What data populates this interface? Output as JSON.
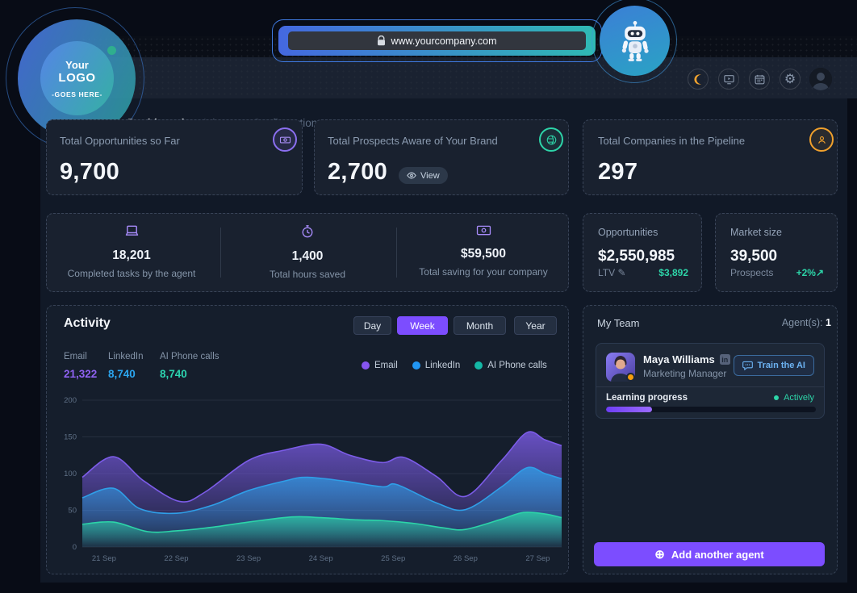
{
  "browser": {
    "url": "www.yourcompany.com"
  },
  "logo": {
    "line1": "Your",
    "line2": "LOGO",
    "line3": "-GOES HERE-"
  },
  "nav": {
    "tabs": [
      {
        "label": "Dashboard"
      },
      {
        "label": "Inbox"
      },
      {
        "label": "Configurations"
      }
    ],
    "active_tab": "Dashboard"
  },
  "header_icons": [
    "moon-icon",
    "screen-play-icon",
    "calendar-icon",
    "gear-icon"
  ],
  "kpi_cards": [
    {
      "title": "Total Opportunities so Far",
      "value": "9,700",
      "icon": "banknote-icon",
      "accent": "#8b6ff0"
    },
    {
      "title": "Total Prospects Aware of Your Brand",
      "value": "2,700",
      "action": "View",
      "icon": "globe-icon",
      "accent": "#2dd4a8"
    },
    {
      "title": "Total Companies in the Pipeline",
      "value": "297",
      "icon": "person-icon",
      "accent": "#f0a02c"
    }
  ],
  "summary_stats": [
    {
      "icon": "laptop-icon",
      "value": "18,201",
      "label": "Completed tasks by the agent"
    },
    {
      "icon": "alarm-clock-icon",
      "value": "1,400",
      "label": "Total hours saved"
    },
    {
      "icon": "money-icon",
      "value": "$59,500",
      "label": "Total saving for your company"
    }
  ],
  "side_stats": [
    {
      "title": "Opportunities",
      "value": "$2,550,985",
      "sub_label": "LTV",
      "sub_value": "$3,892"
    },
    {
      "title": "Market size",
      "value": "39,500",
      "sub_label": "Prospects",
      "sub_value": "+2%"
    }
  ],
  "activity": {
    "title": "Activity",
    "range_buttons": [
      "Day",
      "Week",
      "Month",
      "Year"
    ],
    "active_range": "Week",
    "totals": [
      {
        "label": "Email",
        "value": "21,322",
        "color": "#8f62f2"
      },
      {
        "label": "LinkedIn",
        "value": "8,740",
        "color": "#2ba6f0"
      },
      {
        "label": "AI Phone calls",
        "value": "8,740",
        "color": "#2cd4b0"
      }
    ]
  },
  "chart_data": {
    "type": "area",
    "title": "Activity (weekly)",
    "x_labels": [
      "21 Sep",
      "22 Sep",
      "23 Sep",
      "24 Sep",
      "25 Sep",
      "26 Sep",
      "27 Sep"
    ],
    "x_tick_positions": [
      0,
      1,
      2,
      3,
      4,
      5,
      6
    ],
    "x_range": [
      -0.3,
      6.33
    ],
    "ylim": [
      0,
      200
    ],
    "yticks": [
      0,
      50,
      100,
      150,
      200
    ],
    "grid": true,
    "legend_position": "top-right",
    "series": [
      {
        "name": "Email",
        "color": "#7c5ce8",
        "points": [
          [
            -0.3,
            95
          ],
          [
            0.13,
            123
          ],
          [
            0.55,
            90
          ],
          [
            1.05,
            62
          ],
          [
            1.4,
            75
          ],
          [
            2.0,
            118
          ],
          [
            2.5,
            132
          ],
          [
            3.0,
            140
          ],
          [
            3.4,
            125
          ],
          [
            3.85,
            115
          ],
          [
            4.15,
            122
          ],
          [
            4.6,
            96
          ],
          [
            5.0,
            69
          ],
          [
            5.5,
            118
          ],
          [
            5.85,
            156
          ],
          [
            6.1,
            146
          ],
          [
            6.33,
            138
          ]
        ]
      },
      {
        "name": "LinkedIn",
        "color": "#2f9fe8",
        "points": [
          [
            -0.3,
            67
          ],
          [
            0.13,
            80
          ],
          [
            0.5,
            52
          ],
          [
            1.0,
            46
          ],
          [
            1.5,
            57
          ],
          [
            2.0,
            77
          ],
          [
            2.5,
            90
          ],
          [
            2.8,
            95
          ],
          [
            3.3,
            90
          ],
          [
            3.85,
            82
          ],
          [
            4.05,
            85
          ],
          [
            4.6,
            60
          ],
          [
            5.0,
            51
          ],
          [
            5.5,
            82
          ],
          [
            5.85,
            108
          ],
          [
            6.1,
            100
          ],
          [
            6.33,
            93
          ]
        ]
      },
      {
        "name": "AI Phone calls",
        "color": "#2cd4a8",
        "points": [
          [
            -0.3,
            31
          ],
          [
            0.13,
            34
          ],
          [
            0.6,
            21
          ],
          [
            1.0,
            22
          ],
          [
            1.5,
            27
          ],
          [
            2.0,
            34
          ],
          [
            2.6,
            41
          ],
          [
            3.0,
            40
          ],
          [
            3.5,
            37
          ],
          [
            3.85,
            36
          ],
          [
            4.3,
            32
          ],
          [
            4.7,
            26
          ],
          [
            5.0,
            24
          ],
          [
            5.5,
            38
          ],
          [
            5.8,
            47
          ],
          [
            6.1,
            45
          ],
          [
            6.33,
            40
          ]
        ]
      }
    ]
  },
  "team": {
    "title": "My Team",
    "agents_label": "Agent(s):",
    "agents_count": "1",
    "agent": {
      "name": "Maya Williams",
      "role": "Marketing Manager",
      "train_button": "Train the AI",
      "progress_label": "Learning progress",
      "status": "Actively",
      "progress_pct": 22
    },
    "add_button": "Add another agent"
  },
  "glyphs": {
    "gear": "⚙",
    "pencil": "✎",
    "trend": "↗",
    "plus": "⊕",
    "linkedin": "in"
  }
}
